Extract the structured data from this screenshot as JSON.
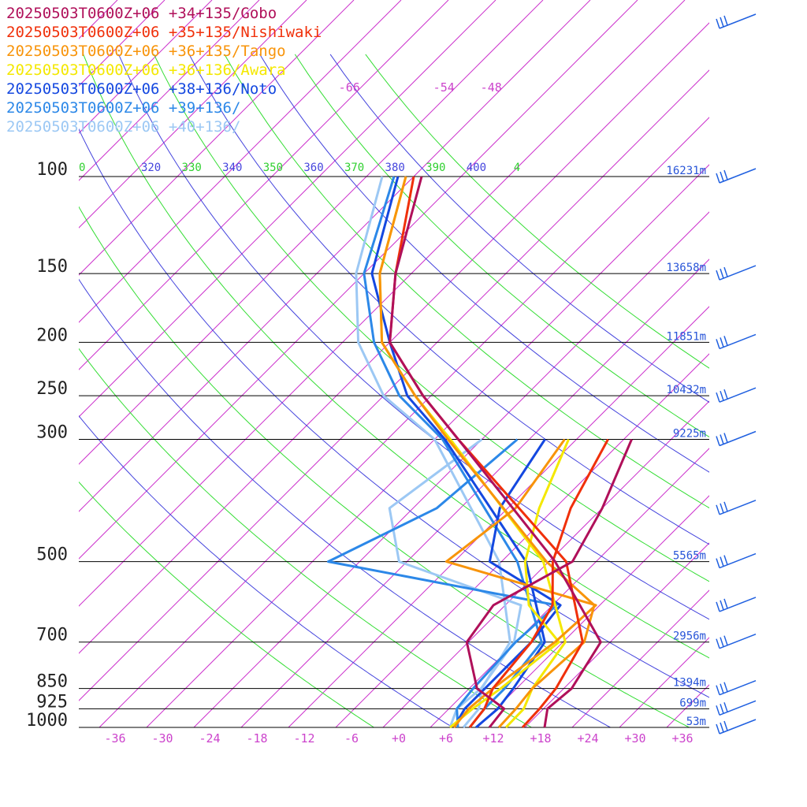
{
  "chart_data": {
    "type": "skew-t log-p sounding",
    "legend": [
      {
        "label": "20250503T0600Z+06 +34+135/Gobo",
        "color": "#b0105a"
      },
      {
        "label": "20250503T0600Z+06 +35+135/Nishiwaki",
        "color": "#f0300a"
      },
      {
        "label": "20250503T0600Z+06 +36+135/Tango",
        "color": "#f8940a"
      },
      {
        "label": "20250503T0600Z+06 +36+136/Awara",
        "color": "#f4e800"
      },
      {
        "label": "20250503T0600Z+06 +38+136/Noto",
        "color": "#1448e0"
      },
      {
        "label": "20250503T0600Z+06 +39+136/",
        "color": "#2c88e8"
      },
      {
        "label": "20250503T0600Z+06 +40+136/",
        "color": "#9cc8f4"
      }
    ],
    "legend_placement": "top-left",
    "pressure_levels": [
      {
        "p": 100,
        "label": "100",
        "height": "16231m"
      },
      {
        "p": 150,
        "label": "150",
        "height": "13658m"
      },
      {
        "p": 200,
        "label": "200",
        "height": "11851m"
      },
      {
        "p": 250,
        "label": "250",
        "height": "10432m"
      },
      {
        "p": 300,
        "label": "300",
        "height": "9225m"
      },
      {
        "p": 500,
        "label": "500",
        "height": "5565m"
      },
      {
        "p": 700,
        "label": "700",
        "height": "2956m"
      },
      {
        "p": 850,
        "label": "850",
        "height": "1394m"
      },
      {
        "p": 925,
        "label": "925",
        "height": "699m"
      },
      {
        "p": 1000,
        "label": "1000",
        "height": "53m"
      }
    ],
    "temperature_ticks": [
      "-36",
      "-30",
      "-24",
      "-18",
      "-12",
      "-6",
      "+0",
      "+6",
      "+12",
      "+18",
      "+24",
      "+30",
      "+36"
    ],
    "temperature_tick_values": [
      -36,
      -30,
      -24,
      -18,
      -12,
      -6,
      0,
      6,
      12,
      18,
      24,
      30,
      36
    ],
    "upper_isotherm_labels": [
      {
        "t": -66,
        "label": "-66"
      },
      {
        "t": -54,
        "label": "-54"
      },
      {
        "t": -48,
        "label": "-48"
      }
    ],
    "theta_labels": [
      {
        "theta": 310,
        "label": "0",
        "color": "#30d030"
      },
      {
        "theta": 320,
        "label": "320",
        "color": "#4444dd"
      },
      {
        "theta": 330,
        "label": "330",
        "color": "#30d030"
      },
      {
        "theta": 340,
        "label": "340",
        "color": "#4444dd"
      },
      {
        "theta": 350,
        "label": "350",
        "color": "#30d030"
      },
      {
        "theta": 360,
        "label": "360",
        "color": "#4444dd"
      },
      {
        "theta": 370,
        "label": "370",
        "color": "#30d030"
      },
      {
        "theta": 380,
        "label": "380",
        "color": "#4444dd"
      },
      {
        "theta": 390,
        "label": "390",
        "color": "#30d030"
      },
      {
        "theta": 400,
        "label": "400",
        "color": "#4444dd"
      },
      {
        "theta": 410,
        "label": "4",
        "color": "#30d030"
      }
    ],
    "xlim": [
      -40,
      40
    ],
    "ylim_hPa": [
      1000,
      100
    ],
    "y_scale": "log",
    "series": [
      {
        "name": "20250503T0600Z+06 +34+135/Gobo",
        "color": "#b0105a",
        "temperature": [
          [
            1000,
            18.5
          ],
          [
            925,
            16.5
          ],
          [
            850,
            17
          ],
          [
            700,
            14.8
          ],
          [
            500,
            -1.2
          ],
          [
            300,
            -29
          ],
          [
            250,
            -39
          ],
          [
            200,
            -50
          ],
          [
            150,
            -58
          ],
          [
            100,
            -67
          ]
        ],
        "dewpoint": [
          [
            1000,
            11.5
          ],
          [
            925,
            11
          ],
          [
            850,
            5
          ],
          [
            700,
            -2.2
          ],
          [
            600,
            -3.5
          ],
          [
            500,
            1
          ],
          [
            400,
            -2
          ],
          [
            300,
            -7
          ]
        ]
      },
      {
        "name": "20250503T0600Z+06 +35+135/Nishiwaki",
        "color": "#f0300a",
        "temperature": [
          [
            1000,
            15.7
          ],
          [
            925,
            15.5
          ],
          [
            850,
            15
          ],
          [
            700,
            12.5
          ],
          [
            500,
            0.2
          ],
          [
            300,
            -29
          ],
          [
            250,
            -39
          ],
          [
            200,
            -50
          ],
          [
            150,
            -58
          ],
          [
            100,
            -68
          ]
        ],
        "dewpoint": [
          [
            1000,
            9
          ],
          [
            925,
            8.5
          ],
          [
            850,
            7
          ],
          [
            700,
            6
          ],
          [
            600,
            4
          ],
          [
            500,
            -1.5
          ],
          [
            400,
            -6
          ],
          [
            300,
            -10
          ]
        ]
      },
      {
        "name": "20250503T0600Z+06 +36+135/Tango",
        "color": "#f8940a",
        "temperature": [
          [
            1000,
            12.7
          ],
          [
            925,
            12.5
          ],
          [
            850,
            12
          ],
          [
            700,
            12.7
          ],
          [
            600,
            9.3
          ],
          [
            500,
            -2.3
          ],
          [
            300,
            -30.3
          ],
          [
            250,
            -40
          ],
          [
            200,
            -51
          ],
          [
            150,
            -60
          ],
          [
            100,
            -69
          ]
        ],
        "dewpoint": [
          [
            1000,
            7
          ],
          [
            925,
            6.5
          ],
          [
            850,
            7
          ],
          [
            700,
            9
          ],
          [
            600,
            9.5
          ],
          [
            500,
            -15
          ],
          [
            400,
            -13
          ],
          [
            300,
            -15.5
          ]
        ]
      },
      {
        "name": "20250503T0600Z+06 +36+136/Awara",
        "color": "#f4e800",
        "temperature": [
          [
            1000,
            13.6
          ],
          [
            925,
            13.5
          ],
          [
            850,
            12
          ],
          [
            700,
            10.3
          ],
          [
            500,
            -2.7
          ],
          [
            300,
            -30
          ],
          [
            250,
            -40
          ],
          [
            200,
            -51
          ],
          [
            150,
            -60
          ],
          [
            100,
            -69
          ]
        ],
        "dewpoint": [
          [
            1000,
            6.5
          ],
          [
            925,
            7
          ],
          [
            850,
            8
          ],
          [
            700,
            9.5
          ],
          [
            600,
            1
          ],
          [
            500,
            -5
          ],
          [
            400,
            -10
          ],
          [
            300,
            -15
          ]
        ]
      },
      {
        "name": "20250503T0600Z+06 +38+136/Noto",
        "color": "#1448e0",
        "temperature": [
          [
            1000,
            9.8
          ],
          [
            925,
            10.2
          ],
          [
            850,
            9.6
          ],
          [
            700,
            7.7
          ],
          [
            500,
            -4.9
          ],
          [
            300,
            -30.7
          ],
          [
            250,
            -41
          ],
          [
            200,
            -50
          ],
          [
            150,
            -61
          ],
          [
            100,
            -70
          ]
        ],
        "dewpoint": [
          [
            1000,
            7
          ],
          [
            925,
            6
          ],
          [
            850,
            6
          ],
          [
            700,
            6
          ],
          [
            600,
            5
          ],
          [
            500,
            -9.5
          ],
          [
            400,
            -15
          ],
          [
            300,
            -18
          ]
        ]
      },
      {
        "name": "20250503T0600Z+06 +39+136/",
        "color": "#2c88e8",
        "temperature": [
          [
            1000,
            9
          ],
          [
            925,
            8.5
          ],
          [
            850,
            8.5
          ],
          [
            700,
            7.3
          ],
          [
            500,
            -6
          ],
          [
            300,
            -31
          ],
          [
            250,
            -42
          ],
          [
            200,
            -52
          ],
          [
            150,
            -62
          ],
          [
            100,
            -70.5
          ]
        ],
        "dewpoint": [
          [
            1000,
            7.5
          ],
          [
            925,
            5
          ],
          [
            850,
            4.5
          ],
          [
            700,
            4
          ],
          [
            600,
            4.5
          ],
          [
            500,
            -30
          ],
          [
            400,
            -23
          ],
          [
            300,
            -21.5
          ]
        ]
      },
      {
        "name": "20250503T0600Z+06 +40+136/",
        "color": "#9cc8f4",
        "temperature": [
          [
            1000,
            8.2
          ],
          [
            925,
            7.8
          ],
          [
            850,
            5.6
          ],
          [
            700,
            3.3
          ],
          [
            500,
            -8.3
          ],
          [
            300,
            -32
          ],
          [
            250,
            -44
          ],
          [
            200,
            -54
          ],
          [
            150,
            -63
          ],
          [
            100,
            -72
          ]
        ],
        "dewpoint": [
          [
            1000,
            6.5
          ],
          [
            925,
            5
          ],
          [
            850,
            5.5
          ],
          [
            700,
            3.8
          ],
          [
            600,
            0
          ],
          [
            500,
            -21
          ],
          [
            400,
            -29
          ],
          [
            300,
            -26
          ]
        ]
      }
    ],
    "wind_barbs_placement": "right"
  }
}
